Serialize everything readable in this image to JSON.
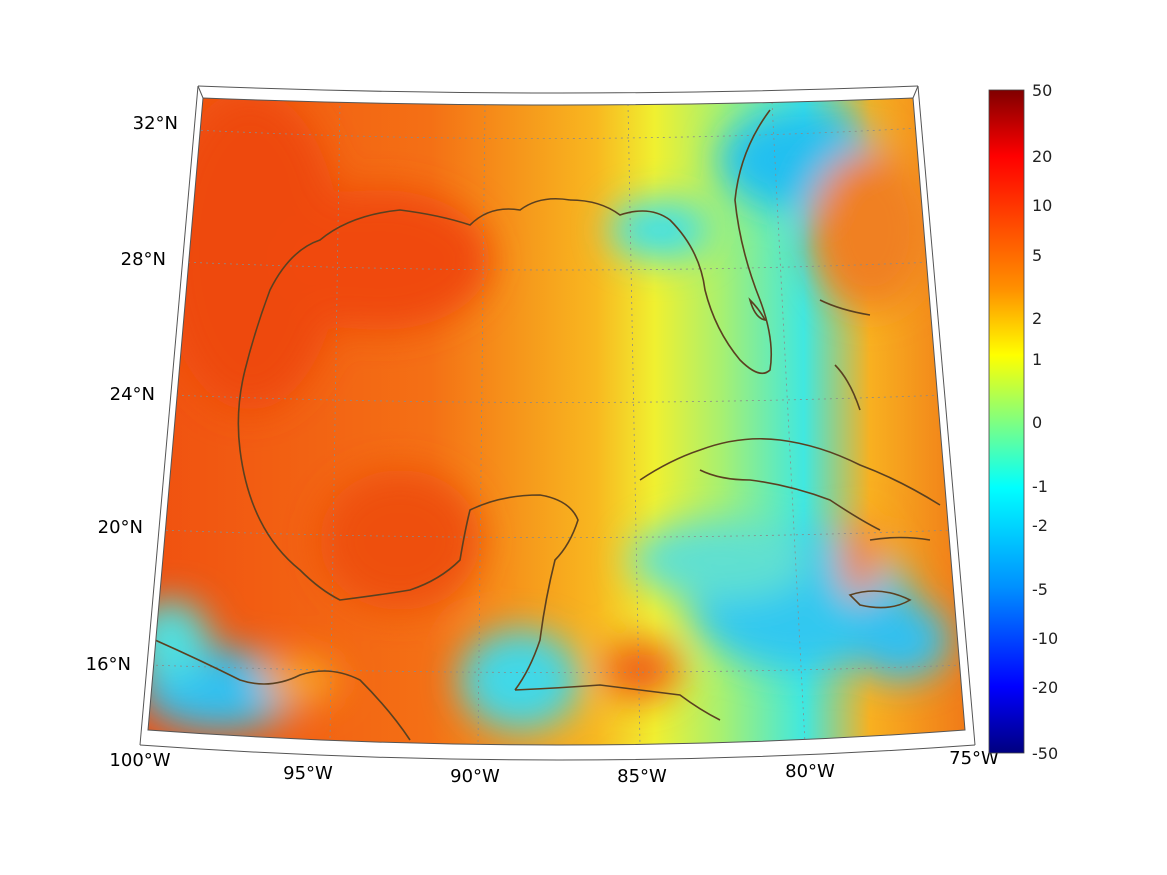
{
  "map": {
    "lon_labels": [
      "100°W",
      "95°W",
      "90°W",
      "85°W",
      "80°W",
      "75°W"
    ],
    "lat_labels": [
      "32°N",
      "28°N",
      "24°N",
      "20°N",
      "16°N"
    ]
  },
  "colorbar": {
    "labels": [
      "50",
      "20",
      "10",
      "5",
      "2",
      "1",
      "0",
      "-1",
      "-2",
      "-5",
      "-10",
      "-20",
      "-50"
    ]
  },
  "colors": {
    "coastline": "#5a4020",
    "grid": "#8a8a8a"
  }
}
